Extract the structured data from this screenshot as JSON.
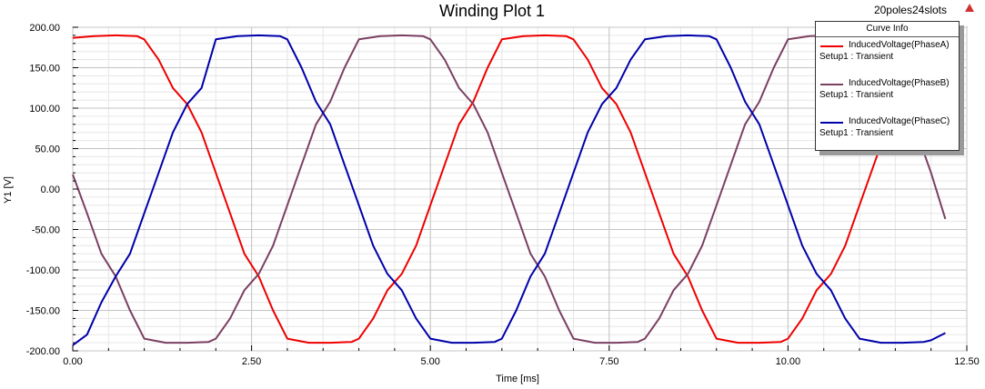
{
  "window": {
    "design_name": "20poles24slots",
    "corner_icon": "ansys-logo-icon"
  },
  "legend": {
    "header": "Curve Info",
    "entries": [
      {
        "name": "InducedVoltage(PhaseA)",
        "setup": "Setup1 : Transient",
        "color": "#ee0000"
      },
      {
        "name": "InducedVoltage(PhaseB)",
        "setup": "Setup1 : Transient",
        "color": "#7b3f62"
      },
      {
        "name": "InducedVoltage(PhaseC)",
        "setup": "Setup1 : Transient",
        "color": "#0000aa"
      }
    ]
  },
  "chart_data": {
    "type": "line",
    "title": "Winding Plot 1",
    "xlabel": "Time [ms]",
    "ylabel": "Y1 [V]",
    "xlim": [
      0,
      12.5
    ],
    "ylim": [
      -200,
      200
    ],
    "x_ticks": [
      0,
      2.5,
      5,
      7.5,
      10,
      12.5
    ],
    "x_tick_labels": [
      "0.00",
      "2.50",
      "5.00",
      "7.50",
      "10.00",
      "12.50"
    ],
    "y_ticks": [
      -200,
      -150,
      -100,
      -50,
      0,
      50,
      100,
      150,
      200
    ],
    "y_tick_labels": [
      "-200.00",
      "-150.00",
      "-100.00",
      "-50.00",
      "0.00",
      "50.00",
      "100.00",
      "150.00",
      "200.00"
    ],
    "grid": true,
    "legend_position": "top-right",
    "series": [
      {
        "name": "InducedVoltage(PhaseA)",
        "color": "#ee0000",
        "x": [
          0,
          0.3,
          0.6,
          0.9,
          1.0,
          1.2,
          1.4,
          1.6,
          1.8,
          2.0,
          2.2,
          2.4,
          2.6,
          2.8,
          3.0,
          3.3,
          3.6,
          3.9,
          4.0,
          4.2,
          4.4,
          4.6,
          4.8,
          5.0,
          5.2,
          5.4,
          5.6,
          5.8,
          6.0,
          6.3,
          6.6,
          6.9,
          7.0,
          7.2,
          7.4,
          7.6,
          7.8,
          8.0,
          8.2,
          8.4,
          8.6,
          8.8,
          9.0,
          9.3,
          9.6,
          9.9,
          10.0,
          10.2,
          10.4,
          10.6,
          10.8,
          11.0,
          11.2,
          11.4
        ],
        "y": [
          187,
          189,
          190,
          189,
          185,
          160,
          125,
          105,
          70,
          20,
          -30,
          -80,
          -108,
          -150,
          -185,
          -190,
          -190,
          -189,
          -185,
          -160,
          -125,
          -105,
          -70,
          -20,
          30,
          80,
          108,
          150,
          185,
          189,
          190,
          189,
          185,
          160,
          125,
          105,
          70,
          20,
          -30,
          -80,
          -108,
          -150,
          -185,
          -190,
          -190,
          -189,
          -185,
          -160,
          -125,
          -105,
          -70,
          -20,
          30,
          80
        ]
      },
      {
        "name": "InducedVoltage(PhaseB)",
        "color": "#7b3f62",
        "x": [
          0,
          0.2,
          0.4,
          0.6,
          0.8,
          1.0,
          1.3,
          1.6,
          1.9,
          2.0,
          2.2,
          2.4,
          2.6,
          2.8,
          3.0,
          3.2,
          3.4,
          3.6,
          3.8,
          4.0,
          4.3,
          4.6,
          4.9,
          5.0,
          5.2,
          5.4,
          5.6,
          5.8,
          6.0,
          6.2,
          6.4,
          6.6,
          6.8,
          7.0,
          7.3,
          7.6,
          7.9,
          8.0,
          8.2,
          8.4,
          8.6,
          8.8,
          9.0,
          9.2,
          9.4,
          9.6,
          9.8,
          10.0,
          10.3,
          10.6,
          10.9,
          11.0,
          11.2,
          11.4,
          11.6,
          11.8,
          12.0,
          12.2
        ],
        "y": [
          18,
          -30,
          -80,
          -108,
          -150,
          -185,
          -190,
          -190,
          -189,
          -185,
          -160,
          -125,
          -105,
          -70,
          -20,
          30,
          80,
          108,
          150,
          185,
          189,
          190,
          189,
          185,
          160,
          125,
          105,
          70,
          20,
          -30,
          -80,
          -108,
          -150,
          -185,
          -190,
          -190,
          -189,
          -185,
          -160,
          -125,
          -105,
          -70,
          -20,
          30,
          80,
          108,
          150,
          185,
          189,
          190,
          189,
          185,
          160,
          125,
          105,
          70,
          20,
          -37
        ]
      },
      {
        "name": "InducedVoltage(PhaseC)",
        "color": "#0000aa",
        "x": [
          0,
          0.2,
          0.4,
          0.6,
          0.8,
          1.0,
          1.2,
          1.4,
          1.6,
          1.8,
          2.0,
          2.3,
          2.6,
          2.9,
          3.0,
          3.2,
          3.4,
          3.6,
          3.8,
          4.0,
          4.2,
          4.4,
          4.6,
          4.8,
          5.0,
          5.3,
          5.6,
          5.9,
          6.0,
          6.2,
          6.4,
          6.6,
          6.8,
          7.0,
          7.2,
          7.4,
          7.6,
          7.8,
          8.0,
          8.3,
          8.6,
          8.9,
          9.0,
          9.2,
          9.4,
          9.6,
          9.8,
          10.0,
          10.2,
          10.4,
          10.6,
          10.8,
          11.0,
          11.3,
          11.6,
          11.9,
          12.0,
          12.2
        ],
        "y": [
          -193,
          -180,
          -140,
          -108,
          -80,
          -30,
          20,
          70,
          105,
          125,
          185,
          189,
          190,
          189,
          185,
          150,
          108,
          80,
          30,
          -20,
          -70,
          -105,
          -125,
          -160,
          -185,
          -190,
          -190,
          -189,
          -185,
          -150,
          -108,
          -80,
          -30,
          20,
          70,
          105,
          125,
          160,
          185,
          189,
          190,
          189,
          185,
          150,
          108,
          80,
          30,
          -20,
          -70,
          -105,
          -125,
          -160,
          -185,
          -190,
          -190,
          -189,
          -187,
          -178
        ]
      }
    ]
  }
}
